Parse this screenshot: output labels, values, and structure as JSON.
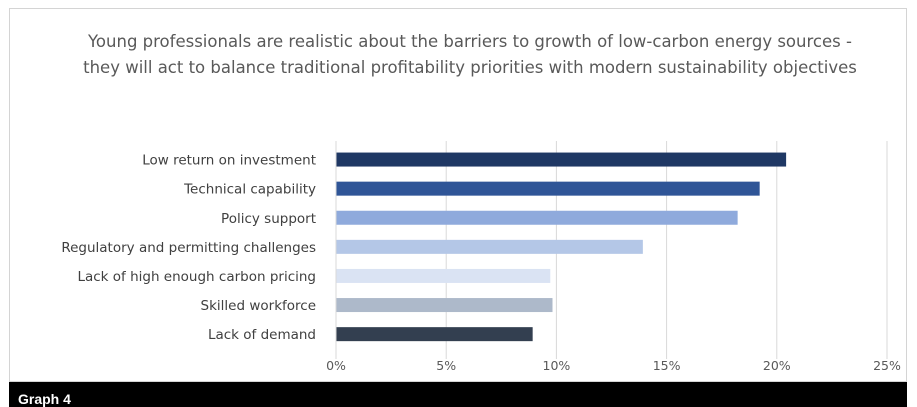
{
  "caption": "Graph 4",
  "chart_data": {
    "type": "bar",
    "orientation": "horizontal",
    "title": "Young professionals are realistic about the barriers to growth of low-carbon energy sources - they will act to balance traditional profitability priorities with modern sustainability objectives",
    "categories": [
      "Low return on investment",
      "Technical capability",
      "Policy support",
      "Regulatory and permitting challenges",
      "Lack of high enough carbon pricing",
      "Skilled workforce",
      "Lack of demand"
    ],
    "values": [
      20.4,
      19.2,
      18.2,
      13.9,
      9.7,
      9.8,
      8.9
    ],
    "colors": [
      "#1f3864",
      "#2f5597",
      "#8faadc",
      "#b4c7e7",
      "#dae3f3",
      "#adb9ca",
      "#333f50"
    ],
    "xlim": [
      0,
      25
    ],
    "xticks": [
      0,
      5,
      10,
      15,
      20,
      25
    ],
    "tick_format": "{}%",
    "grid": true,
    "legend": "none"
  }
}
